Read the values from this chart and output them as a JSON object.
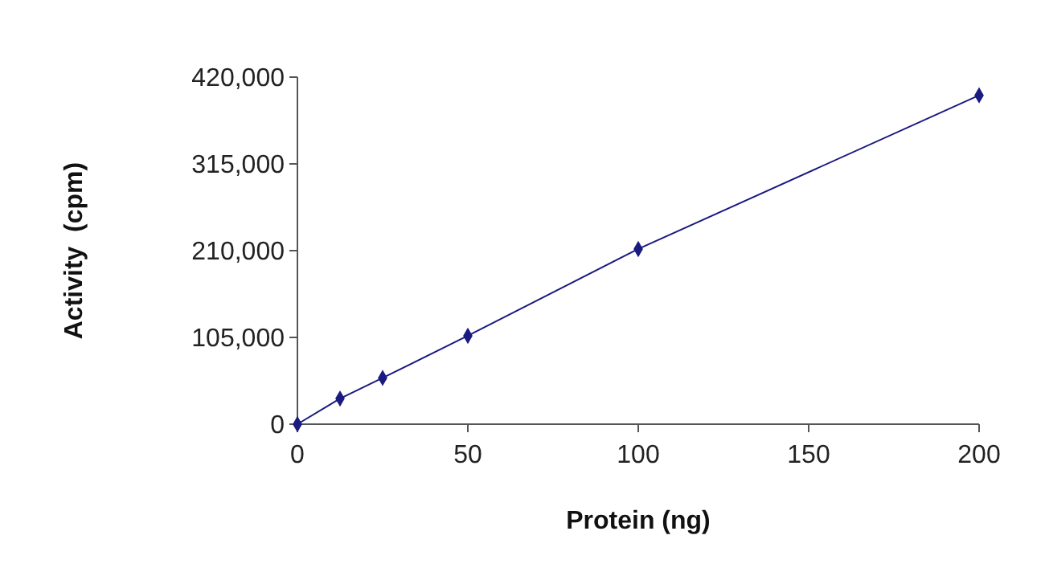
{
  "chart_data": {
    "type": "line",
    "xlabel": "Protein (ng)",
    "ylabel": "Activity  (cpm)",
    "x": [
      0,
      12.5,
      25,
      50,
      100,
      200
    ],
    "series": [
      {
        "color": "#1a1a80",
        "values": [
          0,
          31000,
          56000,
          107000,
          212000,
          398000
        ]
      }
    ],
    "xlim": [
      0,
      200
    ],
    "xticks": [
      0,
      50,
      100,
      150,
      200
    ],
    "ylim": [
      0,
      420000
    ],
    "yticks": [
      {
        "value": 0,
        "label": "0"
      },
      {
        "value": 105000,
        "label": "105,000"
      },
      {
        "value": 210000,
        "label": "210,000"
      },
      {
        "value": 315000,
        "label": "315,000"
      },
      {
        "value": 420000,
        "label": "420,000"
      }
    ],
    "marker": "diamond",
    "line_style": "solid"
  }
}
